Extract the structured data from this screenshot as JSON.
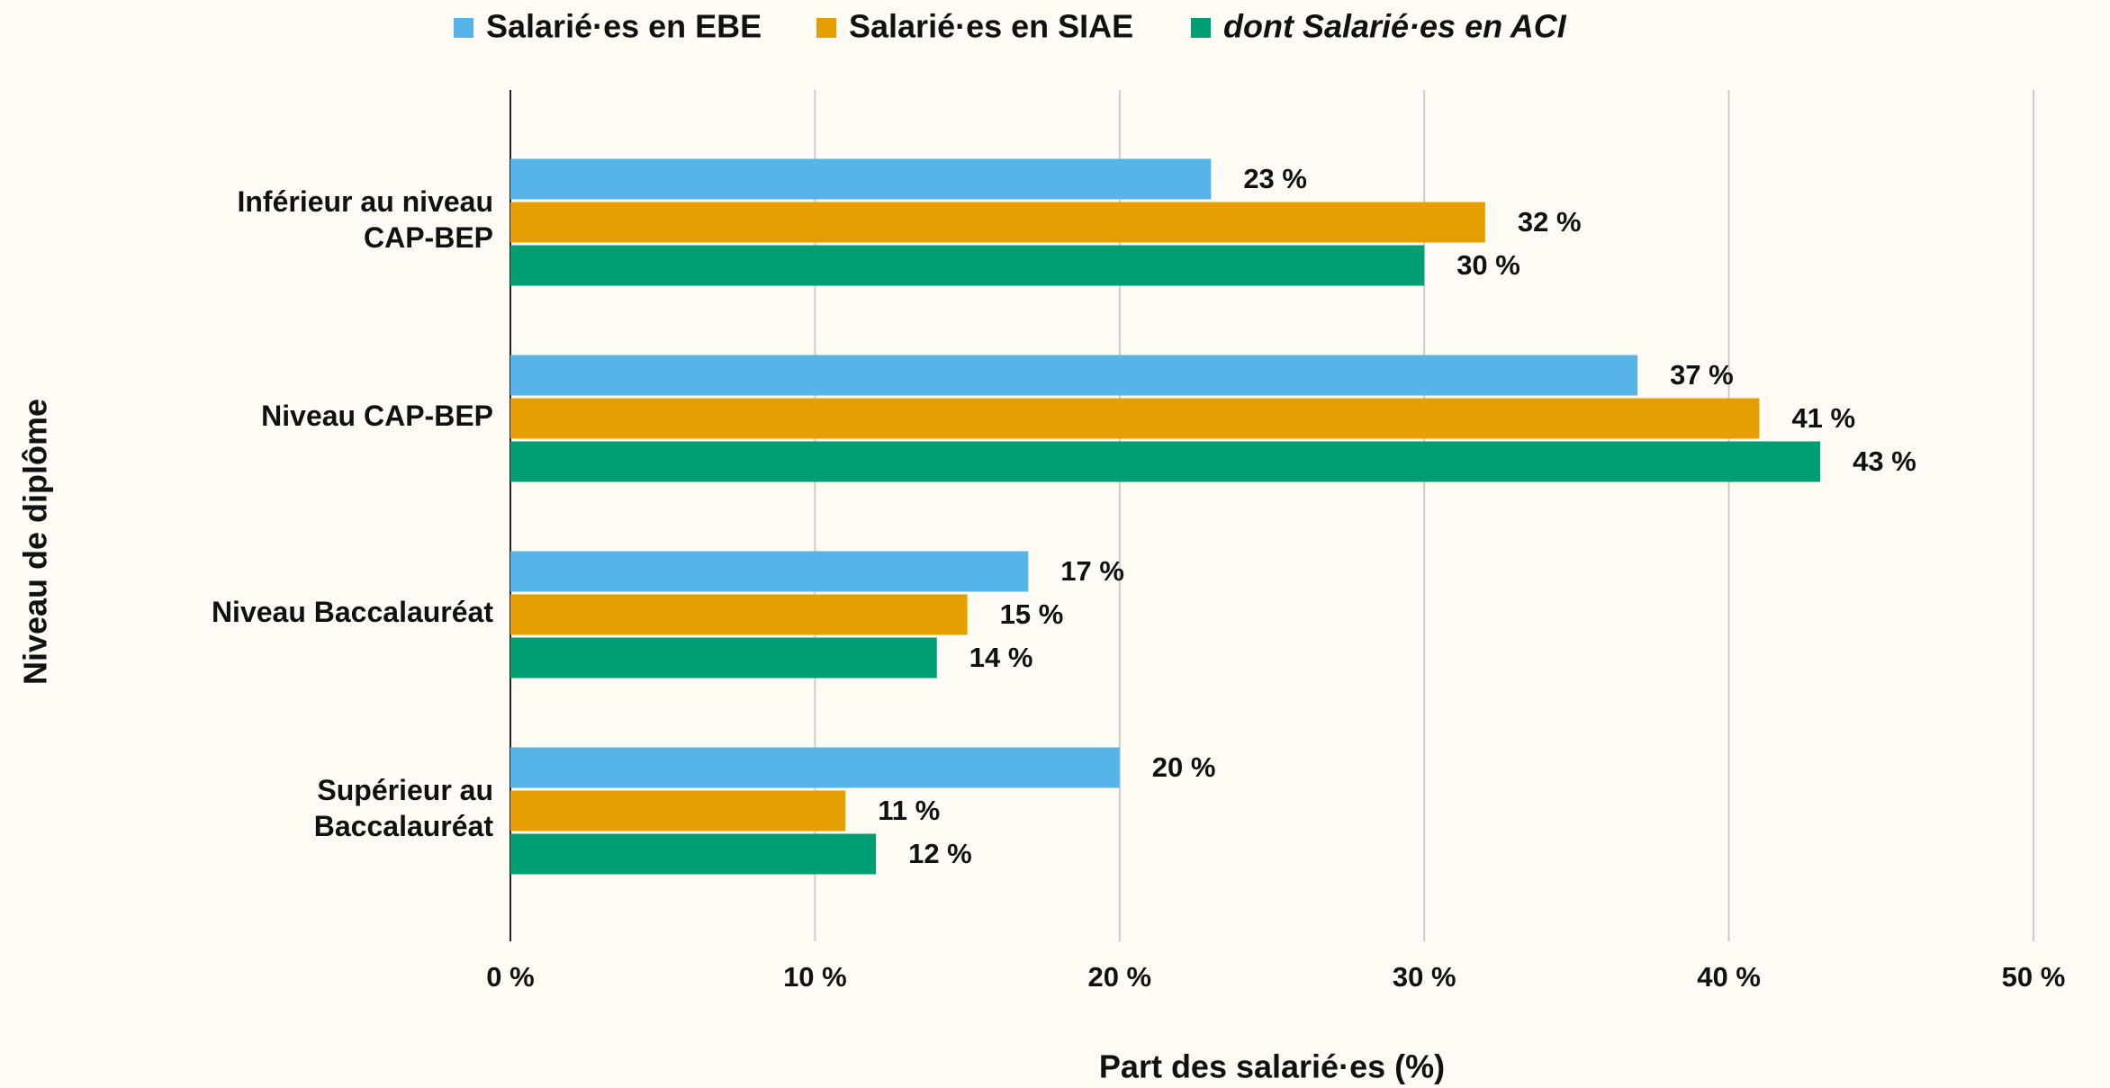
{
  "chart_data": {
    "type": "hbar",
    "categories": [
      [
        "Inférieur au niveau",
        "CAP-BEP"
      ],
      [
        "Niveau CAP-BEP"
      ],
      [
        "Niveau Baccalauréat"
      ],
      [
        "Supérieur au",
        "Baccalauréat"
      ]
    ],
    "series": [
      {
        "name": "Salarié·es en EBE",
        "color": "#56b4e9",
        "values": [
          23,
          37,
          17,
          20
        ],
        "value_labels": [
          "23 %",
          "37 %",
          "17 %",
          "20 %"
        ]
      },
      {
        "name": "Salarié·es en SIAE",
        "color": "#e69f00",
        "values": [
          32,
          41,
          15,
          11
        ],
        "value_labels": [
          "32 %",
          "41 %",
          "15 %",
          "11 %"
        ]
      },
      {
        "name": "dont Salarié·es en ACI",
        "color": "#009e73",
        "italic": true,
        "values": [
          30,
          43,
          14,
          12
        ],
        "value_labels": [
          "30 %",
          "43 %",
          "14 %",
          "12 %"
        ]
      }
    ],
    "xlim": [
      0,
      50
    ],
    "xticks": [
      {
        "value": 0,
        "label": "0 %"
      },
      {
        "value": 10,
        "label": "10 %"
      },
      {
        "value": 20,
        "label": "20 %"
      },
      {
        "value": 30,
        "label": "30 %"
      },
      {
        "value": 40,
        "label": "40 %"
      },
      {
        "value": 50,
        "label": "50 %"
      }
    ],
    "x_label": "Part des salarié·es (%)",
    "y_label": "Niveau de diplôme",
    "grid": true,
    "legend": "top"
  }
}
